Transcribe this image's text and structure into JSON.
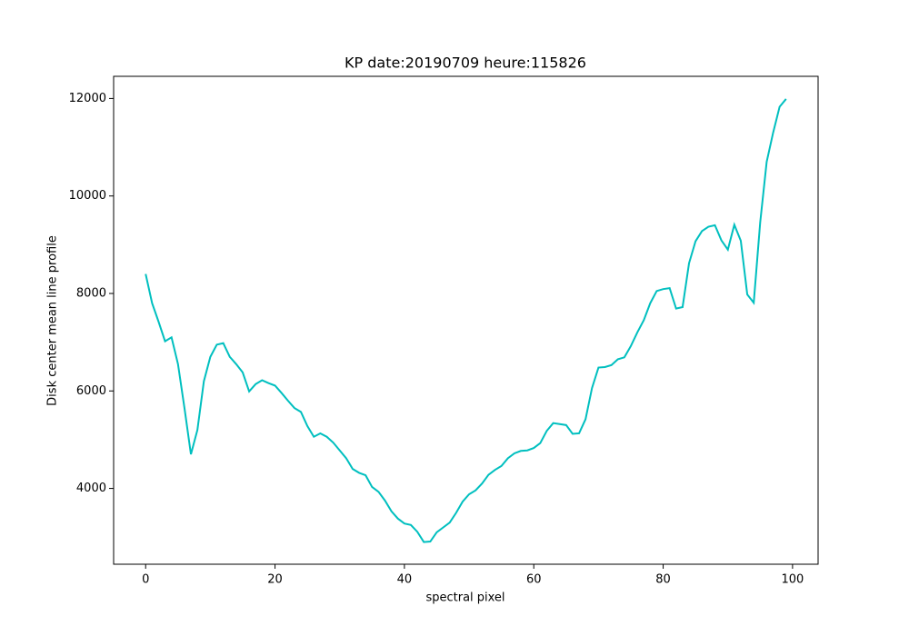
{
  "chart_data": {
    "type": "line",
    "title": "KP date:20190709 heure:115826",
    "x_label": "spectral pixel",
    "y_label": "Disk center mean line profile",
    "x": [
      0,
      1,
      2,
      3,
      4,
      5,
      6,
      7,
      8,
      9,
      10,
      11,
      12,
      13,
      14,
      15,
      16,
      17,
      18,
      19,
      20,
      21,
      22,
      23,
      24,
      25,
      26,
      27,
      28,
      29,
      30,
      31,
      32,
      33,
      34,
      35,
      36,
      37,
      38,
      39,
      40,
      41,
      42,
      43,
      44,
      45,
      46,
      47,
      48,
      49,
      50,
      51,
      52,
      53,
      54,
      55,
      56,
      57,
      58,
      59,
      60,
      61,
      62,
      63,
      64,
      65,
      66,
      67,
      68,
      69,
      70,
      71,
      72,
      73,
      74,
      75,
      76,
      77,
      78,
      79,
      80,
      81,
      82,
      83,
      84,
      85,
      86,
      87,
      88,
      89,
      90,
      91,
      92,
      93,
      94,
      95,
      96,
      97,
      98,
      99
    ],
    "series": [
      {
        "name": "Disk center mean line profile",
        "color": "#00bfbf",
        "values": [
          8400,
          7800,
          7420,
          7020,
          7100,
          6550,
          5650,
          4700,
          5200,
          6200,
          6700,
          6950,
          6980,
          6700,
          6550,
          6380,
          5990,
          6140,
          6220,
          6160,
          6110,
          5960,
          5800,
          5650,
          5570,
          5280,
          5060,
          5130,
          5060,
          4940,
          4780,
          4620,
          4400,
          4320,
          4270,
          4030,
          3930,
          3750,
          3530,
          3380,
          3280,
          3250,
          3110,
          2900,
          2910,
          3100,
          3200,
          3300,
          3500,
          3730,
          3880,
          3960,
          4100,
          4280,
          4380,
          4460,
          4620,
          4720,
          4770,
          4780,
          4830,
          4930,
          5180,
          5340,
          5320,
          5300,
          5120,
          5130,
          5420,
          6060,
          6480,
          6490,
          6530,
          6650,
          6690,
          6920,
          7200,
          7450,
          7800,
          8050,
          8090,
          8110,
          7690,
          7720,
          8620,
          9070,
          9280,
          9370,
          9400,
          9090,
          8900,
          9410,
          9080,
          7980,
          7810,
          9460,
          10700,
          11300,
          11830,
          11990
        ]
      }
    ],
    "xlim": [
      -4.95,
      103.95
    ],
    "xticks": [
      0,
      20,
      40,
      60,
      80,
      100
    ],
    "ylim": [
      2445,
      12455
    ],
    "yticks": [
      4000,
      6000,
      8000,
      10000,
      12000
    ]
  }
}
